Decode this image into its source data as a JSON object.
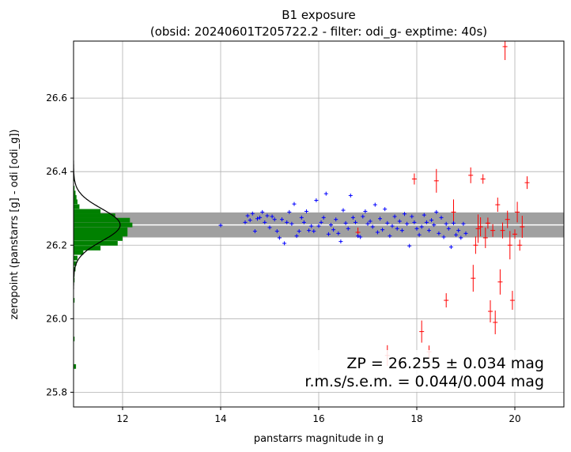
{
  "chart_data": {
    "type": "scatter",
    "title": "B1 exposure",
    "subtitle": "(obsid: 20240601T205722.2 - filter: odi_g- exptime: 40s)",
    "xlabel": "panstarrs magnitude in g",
    "ylabel": "zeropoint (panstarrs [g] - odi [odi_g])",
    "xlim": [
      11.0,
      21.0
    ],
    "ylim": [
      25.76,
      26.755
    ],
    "xticks": [
      12,
      14,
      16,
      18,
      20
    ],
    "yticks": [
      25.8,
      26.0,
      26.2,
      26.4,
      26.6
    ],
    "grid": true,
    "zeropoint": 26.255,
    "zeropoint_band": [
      26.221,
      26.289
    ],
    "annotation_line1": "ZP = 26.255 ± 0.034 mag",
    "annotation_line2": "r.m.s/s.e.m. = 0.044/0.004 mag",
    "colors": {
      "accepted": "#0000ff",
      "rejected": "#ff0000",
      "histogram": "#008000",
      "band": "#a0a0a0",
      "fit": "#000000"
    },
    "histogram": {
      "bin_width": 0.0125,
      "bins": [
        [
          25.87,
          11.05
        ],
        [
          25.945,
          11.02
        ],
        [
          26.05,
          11.02
        ],
        [
          26.105,
          11.02
        ],
        [
          26.12,
          11.02
        ],
        [
          26.135,
          11.04
        ],
        [
          26.15,
          11.06
        ],
        [
          26.165,
          11.08
        ],
        [
          26.18,
          11.2
        ],
        [
          26.192,
          11.55
        ],
        [
          26.205,
          11.9
        ],
        [
          26.218,
          12.0
        ],
        [
          26.23,
          12.1
        ],
        [
          26.242,
          12.1
        ],
        [
          26.255,
          12.2
        ],
        [
          26.268,
          12.15
        ],
        [
          26.28,
          11.85
        ],
        [
          26.292,
          11.55
        ],
        [
          26.305,
          11.12
        ],
        [
          26.318,
          11.08
        ],
        [
          26.33,
          11.06
        ],
        [
          26.342,
          11.04
        ],
        [
          26.355,
          11.02
        ],
        [
          26.38,
          11.02
        ]
      ]
    },
    "series": [
      {
        "name": "accepted",
        "points": [
          [
            14.0,
            26.254
          ],
          [
            14.5,
            26.262
          ],
          [
            14.55,
            26.28
          ],
          [
            14.6,
            26.268
          ],
          [
            14.65,
            26.286
          ],
          [
            14.7,
            26.238
          ],
          [
            14.75,
            26.272
          ],
          [
            14.8,
            26.275
          ],
          [
            14.85,
            26.29
          ],
          [
            14.9,
            26.262
          ],
          [
            14.95,
            26.28
          ],
          [
            15.0,
            26.248
          ],
          [
            15.05,
            26.278
          ],
          [
            15.1,
            26.27
          ],
          [
            15.15,
            26.238
          ],
          [
            15.2,
            26.22
          ],
          [
            15.25,
            26.27
          ],
          [
            15.3,
            26.205
          ],
          [
            15.35,
            26.262
          ],
          [
            15.4,
            26.29
          ],
          [
            15.45,
            26.258
          ],
          [
            15.5,
            26.312
          ],
          [
            15.55,
            26.225
          ],
          [
            15.6,
            26.238
          ],
          [
            15.65,
            26.275
          ],
          [
            15.7,
            26.262
          ],
          [
            15.75,
            26.292
          ],
          [
            15.8,
            26.24
          ],
          [
            15.85,
            26.252
          ],
          [
            15.9,
            26.238
          ],
          [
            15.95,
            26.322
          ],
          [
            16.0,
            26.252
          ],
          [
            16.05,
            26.262
          ],
          [
            16.1,
            26.275
          ],
          [
            16.15,
            26.34
          ],
          [
            16.2,
            26.23
          ],
          [
            16.25,
            26.255
          ],
          [
            16.3,
            26.242
          ],
          [
            16.35,
            26.27
          ],
          [
            16.4,
            26.232
          ],
          [
            16.45,
            26.21
          ],
          [
            16.5,
            26.295
          ],
          [
            16.55,
            26.26
          ],
          [
            16.6,
            26.245
          ],
          [
            16.65,
            26.335
          ],
          [
            16.7,
            26.275
          ],
          [
            16.75,
            26.262
          ],
          [
            16.8,
            26.225
          ],
          [
            16.85,
            26.222
          ],
          [
            16.9,
            26.278
          ],
          [
            16.95,
            26.292
          ],
          [
            17.0,
            26.258
          ],
          [
            17.05,
            26.265
          ],
          [
            17.1,
            26.25
          ],
          [
            17.15,
            26.31
          ],
          [
            17.2,
            26.235
          ],
          [
            17.25,
            26.272
          ],
          [
            17.3,
            26.242
          ],
          [
            17.35,
            26.298
          ],
          [
            17.4,
            26.26
          ],
          [
            17.45,
            26.225
          ],
          [
            17.5,
            26.252
          ],
          [
            17.55,
            26.278
          ],
          [
            17.6,
            26.245
          ],
          [
            17.65,
            26.265
          ],
          [
            17.7,
            26.24
          ],
          [
            17.75,
            26.285
          ],
          [
            17.8,
            26.258
          ],
          [
            17.85,
            26.198
          ],
          [
            17.9,
            26.278
          ],
          [
            17.95,
            26.262
          ],
          [
            18.0,
            26.245
          ],
          [
            18.05,
            26.228
          ],
          [
            18.1,
            26.25
          ],
          [
            18.15,
            26.282
          ],
          [
            18.2,
            26.262
          ],
          [
            18.25,
            26.24
          ],
          [
            18.3,
            26.268
          ],
          [
            18.35,
            26.255
          ],
          [
            18.4,
            26.29
          ],
          [
            18.45,
            26.232
          ],
          [
            18.5,
            26.275
          ],
          [
            18.55,
            26.222
          ],
          [
            18.6,
            26.258
          ],
          [
            18.65,
            26.245
          ],
          [
            18.7,
            26.195
          ],
          [
            18.75,
            26.26
          ],
          [
            18.8,
            26.228
          ],
          [
            18.85,
            26.24
          ],
          [
            18.9,
            26.22
          ],
          [
            18.95,
            26.258
          ],
          [
            19.0,
            26.232
          ]
        ]
      },
      {
        "name": "rejected",
        "points": [
          [
            16.8,
            26.235
          ],
          [
            17.4,
            25.9
          ],
          [
            17.95,
            26.38
          ],
          [
            18.1,
            25.965
          ],
          [
            18.25,
            25.91
          ],
          [
            18.4,
            26.375
          ],
          [
            18.6,
            26.05
          ],
          [
            18.75,
            26.29
          ],
          [
            19.1,
            26.39
          ],
          [
            19.15,
            26.11
          ],
          [
            19.2,
            26.2
          ],
          [
            19.25,
            26.245
          ],
          [
            19.3,
            26.25
          ],
          [
            19.35,
            26.38
          ],
          [
            19.4,
            26.22
          ],
          [
            19.45,
            26.26
          ],
          [
            19.5,
            26.02
          ],
          [
            19.55,
            26.24
          ],
          [
            19.6,
            25.99
          ],
          [
            19.65,
            26.31
          ],
          [
            19.7,
            26.1
          ],
          [
            19.75,
            26.24
          ],
          [
            19.8,
            26.74
          ],
          [
            19.85,
            26.27
          ],
          [
            19.9,
            26.2
          ],
          [
            19.95,
            26.05
          ],
          [
            20.0,
            26.23
          ],
          [
            20.05,
            26.29
          ],
          [
            20.1,
            26.2
          ],
          [
            20.15,
            26.25
          ],
          [
            20.25,
            26.37
          ]
        ]
      }
    ]
  }
}
